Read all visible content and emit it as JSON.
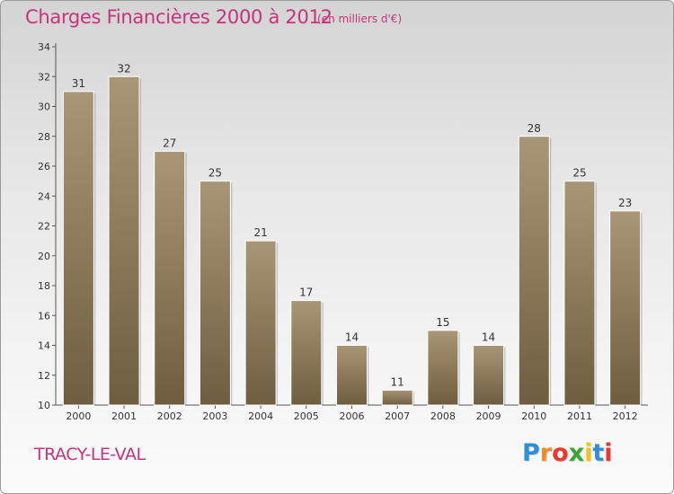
{
  "chart_data": {
    "type": "bar",
    "title": "Charges Financières 2000 à 2012",
    "subtitle": "(en milliers d'€)",
    "categories": [
      "2000",
      "2001",
      "2002",
      "2003",
      "2004",
      "2005",
      "2006",
      "2007",
      "2008",
      "2009",
      "2010",
      "2011",
      "2012"
    ],
    "values": [
      31,
      32,
      27,
      25,
      21,
      17,
      14,
      11,
      15,
      14,
      28,
      25,
      23
    ],
    "ylim": [
      10,
      34
    ],
    "yticks": [
      10,
      12,
      14,
      16,
      18,
      20,
      22,
      24,
      26,
      28,
      30,
      32,
      34
    ],
    "xlabel": "",
    "ylabel": "",
    "grid": false,
    "bar_color_top": "#a89676",
    "bar_color_bottom": "#6f5d3f"
  },
  "footer": {
    "city": "TRACY-LE-VAL",
    "logo_letters": [
      "P",
      "r",
      "o",
      "x",
      "i",
      "t",
      "i"
    ],
    "logo_colors": [
      "#2f8fd8",
      "#f28c1e",
      "#e53b2f",
      "#3aa63a",
      "#f6c21a",
      "#2f8fd8",
      "#e53b2f"
    ]
  }
}
